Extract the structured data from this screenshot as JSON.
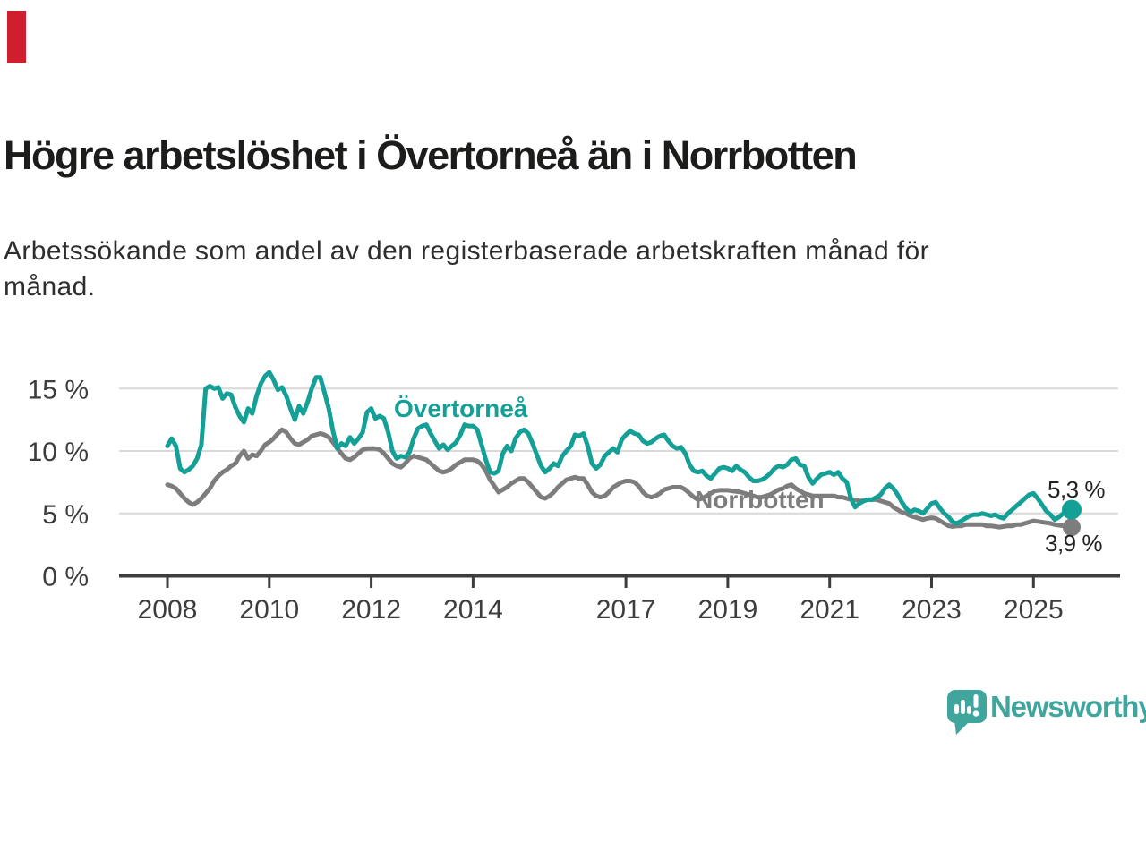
{
  "brand": {
    "flag_color": "#cf1f2f"
  },
  "footer": {
    "logo_text": "Newsworthy",
    "logo_color": "#40a69d"
  },
  "chart_data": {
    "type": "line",
    "title": "Högre arbetslöshet i Övertorneå än i Norrbotten",
    "subtitle": "Arbetssökande som andel av den registerbaserade arbetskraften månad för månad.",
    "subtitle_lines": [
      "Arbetssökande som andel av den registerbaserade arbetskraften månad för",
      "månad."
    ],
    "x_unit": "month",
    "x_start": "2008-01",
    "x_end": "2025-10",
    "x_ticks": [
      2008,
      2010,
      2012,
      2014,
      2017,
      2019,
      2021,
      2023,
      2025
    ],
    "y_ticks": [
      0,
      5,
      10,
      15
    ],
    "y_tick_labels": [
      "0 %",
      "5 %",
      "10 %",
      "15 %"
    ],
    "ylim": [
      0,
      16.5
    ],
    "grid": "horizontal",
    "legend": "inline-labels",
    "series": [
      {
        "name": "Övertorneå",
        "color": "#14a096",
        "end_label": "5,3 %",
        "values": [
          10.4,
          11.0,
          10.4,
          8.6,
          8.3,
          8.5,
          8.8,
          9.4,
          10.5,
          15.0,
          15.2,
          15.0,
          15.1,
          14.2,
          14.6,
          14.5,
          13.5,
          12.8,
          12.3,
          13.4,
          13.0,
          14.4,
          15.4,
          16.0,
          16.3,
          15.7,
          14.9,
          15.1,
          14.4,
          13.4,
          12.5,
          13.6,
          13.0,
          13.9,
          15.0,
          15.9,
          15.9,
          14.7,
          13.4,
          11.6,
          10.2,
          10.6,
          10.4,
          11.1,
          10.6,
          11.0,
          11.5,
          13.1,
          13.4,
          12.6,
          12.8,
          12.6,
          11.5,
          10.0,
          9.4,
          9.6,
          9.5,
          9.9,
          11.0,
          11.8,
          12.0,
          12.1,
          11.4,
          10.8,
          10.2,
          10.5,
          10.1,
          10.4,
          10.7,
          11.3,
          12.1,
          12.0,
          12.0,
          11.7,
          10.5,
          9.3,
          8.3,
          8.2,
          8.4,
          9.8,
          10.4,
          10.0,
          11.0,
          11.5,
          11.7,
          11.4,
          10.6,
          9.7,
          8.8,
          8.3,
          8.6,
          9.0,
          8.8,
          9.6,
          10.0,
          10.4,
          11.3,
          11.2,
          11.4,
          10.4,
          9.0,
          8.6,
          8.9,
          9.6,
          9.9,
          10.2,
          9.9,
          10.9,
          11.3,
          11.6,
          11.4,
          11.3,
          10.8,
          10.6,
          10.7,
          11.0,
          11.2,
          11.3,
          10.8,
          10.4,
          10.2,
          10.3,
          9.8,
          8.9,
          8.4,
          8.3,
          8.4,
          8.0,
          7.8,
          8.2,
          8.6,
          8.7,
          8.6,
          8.4,
          8.8,
          8.5,
          8.3,
          7.9,
          7.6,
          7.6,
          7.7,
          7.9,
          8.2,
          8.6,
          8.8,
          8.7,
          8.9,
          9.3,
          9.4,
          8.9,
          8.8,
          7.9,
          7.4,
          7.8,
          8.1,
          8.2,
          8.3,
          8.1,
          8.3,
          7.8,
          7.5,
          6.2,
          5.5,
          5.8,
          6.0,
          6.1,
          6.1,
          6.3,
          6.5,
          7.0,
          7.3,
          7.0,
          6.5,
          5.9,
          5.4,
          5.1,
          5.3,
          5.2,
          5.0,
          5.4,
          5.8,
          5.9,
          5.4,
          5.0,
          4.7,
          4.3,
          4.2,
          4.4,
          4.6,
          4.8,
          4.9,
          4.9,
          5.0,
          4.9,
          4.8,
          4.9,
          4.7,
          4.6,
          5.0,
          5.3,
          5.6,
          5.9,
          6.2,
          6.5,
          6.6,
          6.2,
          5.7,
          5.2,
          4.9,
          4.5,
          4.7,
          5.0,
          5.2,
          5.3
        ]
      },
      {
        "name": "Norrbotten",
        "color": "#7d7d7d",
        "end_label": "3,9 %",
        "values": [
          7.3,
          7.2,
          7.0,
          6.6,
          6.2,
          5.9,
          5.7,
          5.9,
          6.2,
          6.6,
          7.0,
          7.6,
          8.0,
          8.3,
          8.5,
          8.8,
          9.0,
          9.6,
          10.0,
          9.4,
          9.7,
          9.6,
          10.0,
          10.5,
          10.7,
          11.0,
          11.4,
          11.7,
          11.5,
          11.0,
          10.6,
          10.5,
          10.7,
          10.9,
          11.2,
          11.3,
          11.4,
          11.3,
          11.1,
          10.7,
          10.2,
          9.8,
          9.4,
          9.3,
          9.5,
          9.8,
          10.1,
          10.2,
          10.2,
          10.2,
          10.1,
          9.8,
          9.4,
          9.0,
          8.8,
          8.7,
          9.0,
          9.4,
          9.6,
          9.5,
          9.4,
          9.3,
          9.0,
          8.7,
          8.4,
          8.3,
          8.4,
          8.6,
          8.9,
          9.1,
          9.3,
          9.3,
          9.3,
          9.2,
          8.9,
          8.4,
          7.7,
          7.2,
          6.7,
          6.9,
          7.1,
          7.4,
          7.6,
          7.8,
          7.8,
          7.5,
          7.1,
          6.7,
          6.3,
          6.2,
          6.4,
          6.7,
          7.1,
          7.4,
          7.7,
          7.8,
          7.9,
          7.8,
          7.8,
          7.3,
          6.7,
          6.4,
          6.3,
          6.4,
          6.7,
          7.1,
          7.3,
          7.5,
          7.6,
          7.6,
          7.5,
          7.2,
          6.7,
          6.4,
          6.3,
          6.4,
          6.6,
          6.9,
          7.0,
          7.1,
          7.1,
          7.1,
          6.9,
          6.6,
          6.3,
          6.1,
          6.2,
          6.4,
          6.6,
          6.8,
          6.85,
          6.85,
          6.85,
          6.8,
          6.75,
          6.7,
          6.6,
          6.5,
          6.4,
          6.3,
          6.3,
          6.4,
          6.5,
          6.7,
          6.9,
          7.0,
          7.2,
          7.3,
          7.0,
          6.8,
          6.6,
          6.5,
          6.4,
          6.4,
          6.4,
          6.4,
          6.4,
          6.4,
          6.3,
          6.3,
          6.2,
          6.1,
          6.1,
          6.0,
          6.0,
          6.1,
          6.1,
          6.1,
          6.0,
          5.9,
          5.8,
          5.5,
          5.3,
          5.1,
          5.0,
          4.8,
          4.7,
          4.6,
          4.5,
          4.6,
          4.65,
          4.6,
          4.4,
          4.2,
          4.0,
          3.95,
          4.0,
          4.0,
          4.1,
          4.1,
          4.1,
          4.1,
          4.1,
          4.0,
          4.0,
          3.95,
          3.9,
          3.95,
          4.0,
          4.0,
          4.1,
          4.1,
          4.2,
          4.3,
          4.4,
          4.35,
          4.3,
          4.25,
          4.2,
          4.1,
          4.05,
          4.0,
          3.95,
          3.9
        ]
      }
    ]
  }
}
